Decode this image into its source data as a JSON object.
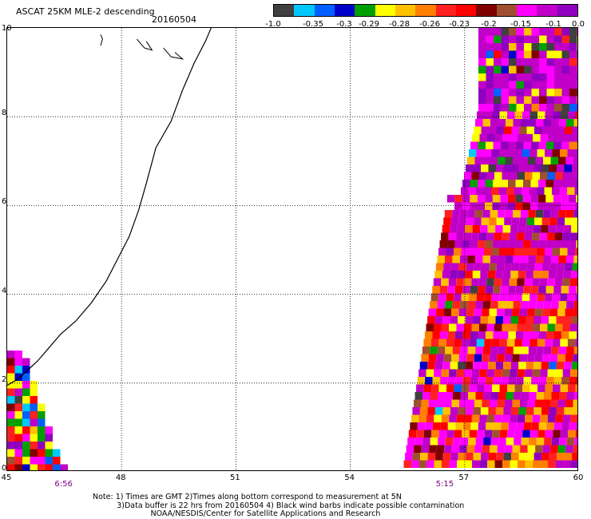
{
  "title": "ASCAT 25KM MLE-2 descending",
  "date": "20160504",
  "colorbar": {
    "colors": [
      "#404040",
      "#00c8ff",
      "#0060ff",
      "#0000c8",
      "#00a000",
      "#ffff00",
      "#ffc000",
      "#ff7f00",
      "#ff2020",
      "#ff0000",
      "#800000",
      "#a05030",
      "#ff00ff",
      "#c000c8",
      "#9000c0"
    ],
    "labels": [
      "-1.0",
      "-0.35",
      "-0.3",
      "-0.29",
      "-0.28",
      "-0.26",
      "-0.23",
      "-0.2",
      "-0.15",
      "-0.1",
      "0.0"
    ]
  },
  "axes": {
    "y_ticks": [
      "0",
      "2",
      "4",
      "6",
      "8",
      "10"
    ],
    "x_ticks": [
      "45",
      "48",
      "51",
      "54",
      "57",
      "60"
    ],
    "lat_range": [
      0,
      10
    ],
    "lon_range": [
      45,
      60
    ]
  },
  "times": [
    {
      "label": "6:56",
      "lon": 46.5
    },
    {
      "label": "5:15",
      "lon": 56.5
    }
  ],
  "notes": {
    "line1": "Note: 1) Times are GMT 2)Times along bottom correspond to measurement at 5N",
    "line2": "3)Data buffer is 22 hrs from 20160504 4) Black wind barbs indicate possible contamination",
    "line3": "NOAA/NESDIS/Center for Satellite Applications and Research"
  }
}
